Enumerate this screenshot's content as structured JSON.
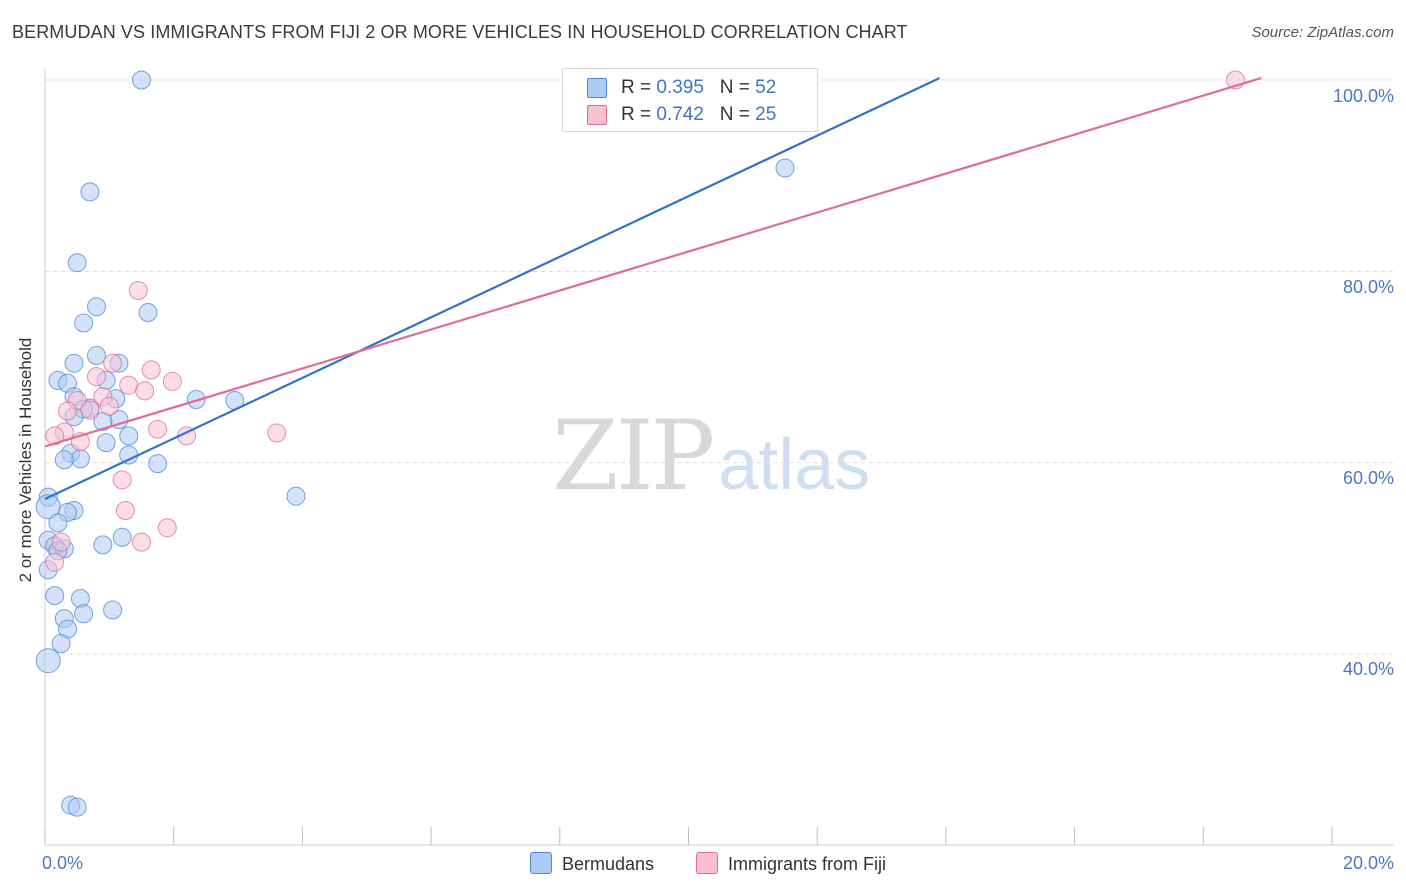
{
  "title": "BERMUDAN VS IMMIGRANTS FROM FIJI 2 OR MORE VEHICLES IN HOUSEHOLD CORRELATION CHART",
  "source": "Source: ZipAtlas.com",
  "watermark": {
    "zip": "ZIP",
    "atlas": "atlas"
  },
  "legend": {
    "rows": [
      {
        "r_label": "R = ",
        "r_value": "0.395",
        "n_label": "N = ",
        "n_value": "52",
        "color": "#aecbf2"
      },
      {
        "r_label": "R = ",
        "r_value": "0.742",
        "n_label": "N = ",
        "n_value": "25",
        "color": "#f7c1d2"
      }
    ]
  },
  "bottom_legend": [
    {
      "label": "Bermudans",
      "color": "#aecbf2"
    },
    {
      "label": "Immigrants from Fiji",
      "color": "#f7c1d2"
    }
  ],
  "chart_data": {
    "type": "scatter",
    "title": "BERMUDAN VS IMMIGRANTS FROM FIJI 2 OR MORE VEHICLES IN HOUSEHOLD CORRELATION CHART",
    "xlabel": "",
    "ylabel": "2 or more Vehicles in Household",
    "x_tick_labels": [
      "0.0%",
      "20.0%"
    ],
    "y_tick_labels": [
      "40.0%",
      "60.0%",
      "80.0%",
      "100.0%"
    ],
    "xlim": [
      0,
      20
    ],
    "ylim": [
      22,
      102
    ],
    "grid": true,
    "legend_position": "top-center",
    "series": [
      {
        "name": "Bermudans",
        "color": "#4a86d8",
        "fill": "#aecbf2",
        "points": [
          [
            1.5,
            100.0
          ],
          [
            0.7,
            88.3
          ],
          [
            0.5,
            80.9
          ],
          [
            0.8,
            76.3
          ],
          [
            0.6,
            74.6
          ],
          [
            1.6,
            75.7
          ],
          [
            0.8,
            71.2
          ],
          [
            0.45,
            70.4
          ],
          [
            1.15,
            70.4
          ],
          [
            0.2,
            68.6
          ],
          [
            0.35,
            68.3
          ],
          [
            0.95,
            68.6
          ],
          [
            0.45,
            66.9
          ],
          [
            1.1,
            66.7
          ],
          [
            2.35,
            66.6
          ],
          [
            2.95,
            66.5
          ],
          [
            0.7,
            65.7
          ],
          [
            0.6,
            65.6
          ],
          [
            0.45,
            64.8
          ],
          [
            1.15,
            64.5
          ],
          [
            0.9,
            64.3
          ],
          [
            1.3,
            62.8
          ],
          [
            0.95,
            62.1
          ],
          [
            0.4,
            61.0
          ],
          [
            1.3,
            60.8
          ],
          [
            0.55,
            60.4
          ],
          [
            0.3,
            60.3
          ],
          [
            1.75,
            59.9
          ],
          [
            0.05,
            56.4
          ],
          [
            3.9,
            56.5
          ],
          [
            0.05,
            55.4
          ],
          [
            0.45,
            55.0
          ],
          [
            0.35,
            54.8
          ],
          [
            0.2,
            53.7
          ],
          [
            0.05,
            51.9
          ],
          [
            0.15,
            51.3
          ],
          [
            0.3,
            51.0
          ],
          [
            1.2,
            52.2
          ],
          [
            0.9,
            51.4
          ],
          [
            0.2,
            50.8
          ],
          [
            0.05,
            48.8
          ],
          [
            0.15,
            46.1
          ],
          [
            0.55,
            45.8
          ],
          [
            0.3,
            43.7
          ],
          [
            0.6,
            44.2
          ],
          [
            1.05,
            44.6
          ],
          [
            0.35,
            42.6
          ],
          [
            0.25,
            41.1
          ],
          [
            0.05,
            39.3
          ],
          [
            11.5,
            90.8
          ],
          [
            0.4,
            24.2
          ],
          [
            0.5,
            24.0
          ]
        ]
      },
      {
        "name": "Immigrants from Fiji",
        "color": "#e06b95",
        "fill": "#f7c1d2",
        "points": [
          [
            18.5,
            100.0
          ],
          [
            1.45,
            78.0
          ],
          [
            1.05,
            70.4
          ],
          [
            1.65,
            69.7
          ],
          [
            0.8,
            69.0
          ],
          [
            1.98,
            68.5
          ],
          [
            1.3,
            68.1
          ],
          [
            1.55,
            67.5
          ],
          [
            0.9,
            66.9
          ],
          [
            0.5,
            66.5
          ],
          [
            1.0,
            65.9
          ],
          [
            0.35,
            65.4
          ],
          [
            0.7,
            65.5
          ],
          [
            1.75,
            63.5
          ],
          [
            0.3,
            63.2
          ],
          [
            2.2,
            62.8
          ],
          [
            3.6,
            63.1
          ],
          [
            0.15,
            62.8
          ],
          [
            0.55,
            62.2
          ],
          [
            1.2,
            58.2
          ],
          [
            1.25,
            55.0
          ],
          [
            1.9,
            53.2
          ],
          [
            1.5,
            51.7
          ],
          [
            0.25,
            51.7
          ],
          [
            0.15,
            49.6
          ]
        ]
      }
    ],
    "trend_lines": [
      {
        "series": "Bermudans",
        "x": [
          0.0,
          13.9
        ],
        "y": [
          56.2,
          100.2
        ]
      },
      {
        "series": "Immigrants from Fiji",
        "x": [
          0.0,
          18.9
        ],
        "y": [
          61.7,
          100.2
        ]
      }
    ]
  }
}
